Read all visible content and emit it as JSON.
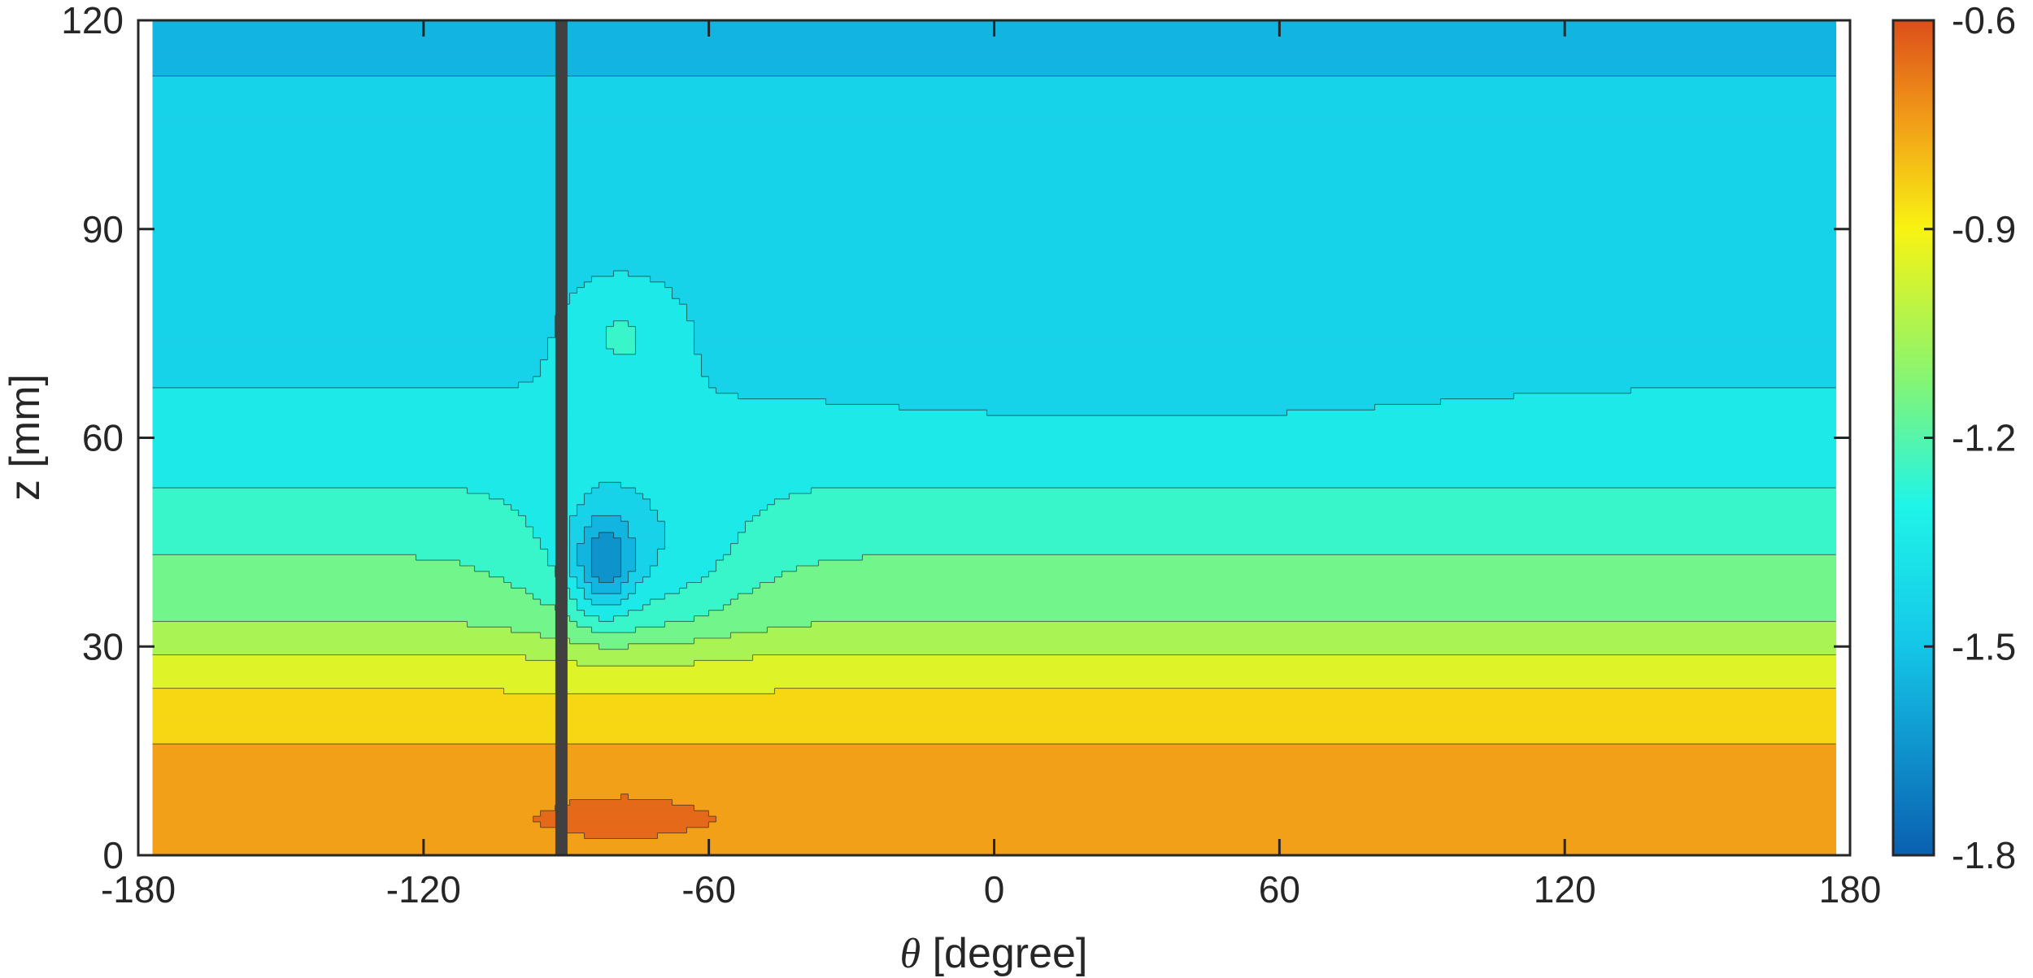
{
  "chart_data": {
    "type": "heatmap",
    "subtype": "filled-contour",
    "title": "",
    "xlabel_symbol": "θ",
    "xlabel_unit": " [degree]",
    "ylabel": "z [mm]",
    "xlim": [
      -180,
      180
    ],
    "ylim": [
      0,
      120
    ],
    "xticks": [
      -180,
      -120,
      -60,
      0,
      60,
      120,
      180
    ],
    "yticks": [
      0,
      30,
      60,
      90,
      120
    ],
    "x_data_range": [
      -177,
      177
    ],
    "grid": false,
    "colorbar": {
      "position": "right",
      "range": [
        -1.8,
        -0.6
      ],
      "ticks": [
        -1.8,
        -1.5,
        -1.2,
        -0.9,
        -0.6
      ],
      "tick_labels": [
        "-1.8",
        "-1.5",
        "-1.2",
        "-0.9",
        "-0.6"
      ],
      "colormap": "turbo"
    },
    "contour_levels": [
      -1.8,
      -1.7,
      -1.6,
      -1.5,
      -1.4,
      -1.3,
      -1.2,
      -1.1,
      -1.0,
      -0.9,
      -0.8,
      -0.7,
      -0.6
    ],
    "vertical_marker": {
      "theta": -91,
      "color": "#404040"
    },
    "field_profile": {
      "z": [
        0,
        5,
        12,
        20,
        27,
        33,
        42,
        52,
        62,
        75,
        88,
        102,
        112,
        120
      ],
      "value": [
        -0.78,
        -0.72,
        -0.76,
        -0.84,
        -0.95,
        -1.09,
        -1.19,
        -1.29,
        -1.38,
        -1.43,
        -1.45,
        -1.47,
        -1.5,
        -1.51
      ]
    },
    "features": [
      {
        "theta": -78,
        "z": 5,
        "dz": 4.5,
        "dtheta": 18,
        "amplitude": 0.07
      },
      {
        "theta": -82,
        "z": 42,
        "dz": 7,
        "dtheta": 6,
        "amplitude": -0.32
      },
      {
        "theta": -75,
        "z": 42,
        "dz": 12,
        "dtheta": 22,
        "amplitude": -0.2
      },
      {
        "theta": -78,
        "z": 75,
        "dz": 8,
        "dtheta": 12,
        "amplitude": 0.14
      },
      {
        "theta": 30,
        "z": 70,
        "dz": 8,
        "dtheta": 60,
        "amplitude": -0.035
      },
      {
        "theta": 5,
        "z": 97,
        "dz": 6,
        "dtheta": 50,
        "amplitude": -0.03
      }
    ]
  }
}
